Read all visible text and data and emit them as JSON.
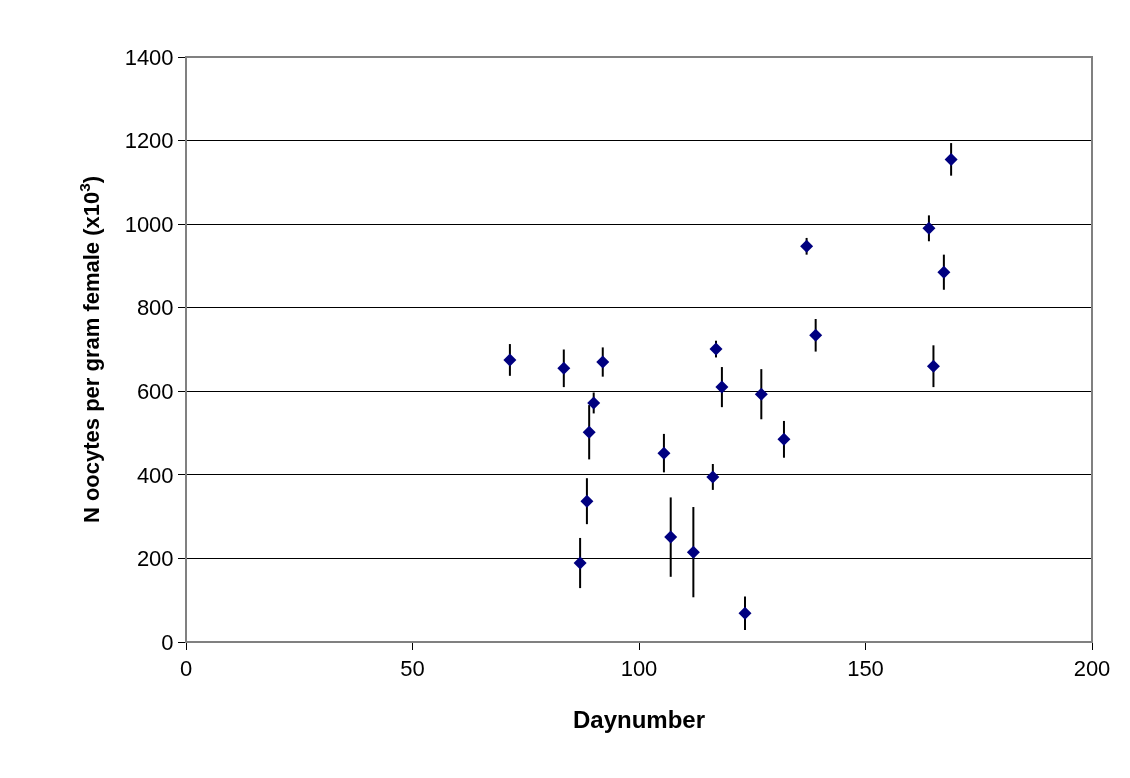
{
  "chart_data": {
    "type": "scatter",
    "xlabel": "Daynumber",
    "ylabel": "N oocytes per gram female (x10$^{3}$)",
    "x": [
      71.5,
      83.4,
      92,
      90,
      89,
      88.5,
      87,
      105.5,
      107,
      112,
      116.3,
      117,
      118.3,
      123.4,
      127,
      132,
      137,
      139,
      164,
      165,
      167.3,
      168.9
    ],
    "series": [
      {
        "color": "#000080",
        "values": [
          675,
          655,
          670,
          572,
          502,
          337,
          189,
          452,
          251,
          215,
          395,
          701,
          610,
          69,
          593,
          485,
          947,
          734,
          990,
          660,
          885,
          1155
        ],
        "errors": [
          38,
          45,
          35,
          25,
          65,
          55,
          60,
          46,
          95,
          108,
          31,
          20,
          48,
          40,
          60,
          44,
          20,
          39,
          31,
          50,
          42,
          39
        ]
      }
    ],
    "xlim": [
      0,
      200
    ],
    "xticks": [
      0,
      50,
      100,
      150,
      200
    ],
    "ylim": [
      0,
      1400
    ],
    "yticks": [
      0,
      200,
      400,
      600,
      800,
      1000,
      1200,
      1400
    ],
    "grid": "y",
    "marker": "diamond"
  }
}
